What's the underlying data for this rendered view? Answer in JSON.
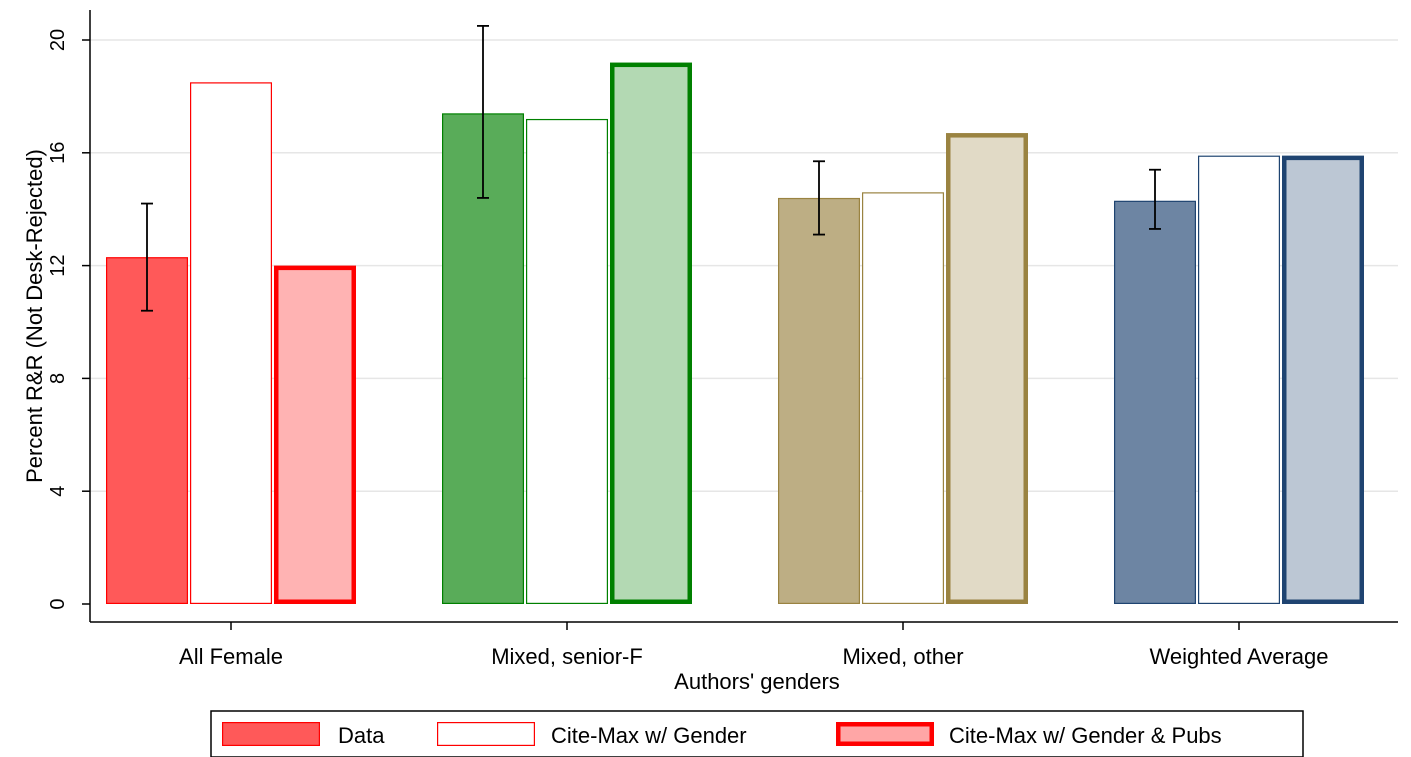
{
  "chart_data": {
    "type": "bar",
    "xlabel": "Authors' genders",
    "ylabel": "Percent R&R (Not Desk-Rejected)",
    "ylim": [
      0,
      21
    ],
    "yticks": [
      0,
      4,
      8,
      12,
      16,
      20
    ],
    "grid": true,
    "legend_placement": "bottom",
    "categories": [
      "All Female",
      "Mixed, senior-F",
      "Mixed, other",
      "Weighted Average"
    ],
    "category_colors": [
      "#ff0000",
      "#008000",
      "#9a8341",
      "#1f4471"
    ],
    "series": [
      {
        "name": "Data",
        "values": [
          12.3,
          17.4,
          14.4,
          14.3
        ]
      },
      {
        "name": "Cite-Max w/ Gender",
        "values": [
          18.5,
          17.2,
          14.6,
          15.9
        ]
      },
      {
        "name": "Cite-Max w/ Gender & Pubs",
        "values": [
          12.0,
          19.2,
          16.7,
          15.9
        ]
      }
    ],
    "error_bars": [
      {
        "low": 10.4,
        "high": 14.2
      },
      {
        "low": 14.4,
        "high": 20.5
      },
      {
        "low": 13.1,
        "high": 15.7
      },
      {
        "low": 13.3,
        "high": 15.4
      }
    ]
  }
}
